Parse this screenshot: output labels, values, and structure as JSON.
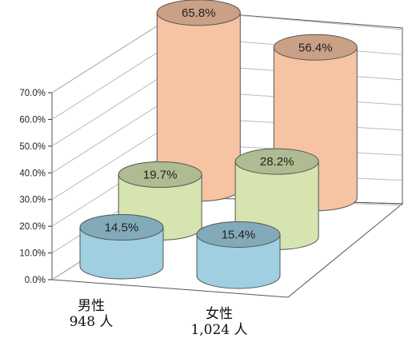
{
  "chart_data": {
    "type": "bar",
    "chart_style": "3d-cylinder-grouped",
    "categories": [
      "男性",
      "女性"
    ],
    "category_counts": [
      "948 人",
      "1,024 人"
    ],
    "series": [
      {
        "values": [
          14.5,
          15.4
        ],
        "color": "#9fcfe0"
      },
      {
        "values": [
          19.7,
          28.2
        ],
        "color": "#d6e4b0"
      },
      {
        "values": [
          65.8,
          56.4
        ],
        "color": "#f6c3a3"
      }
    ],
    "data_labels": [
      [
        "14.5%",
        "15.4%"
      ],
      [
        "19.7%",
        "28.2%"
      ],
      [
        "65.8%",
        "56.4%"
      ]
    ],
    "y_ticks": [
      "0.0%",
      "10.0%",
      "20.0%",
      "30.0%",
      "40.0%",
      "50.0%",
      "60.0%",
      "70.0%"
    ],
    "ylim": [
      0,
      70
    ],
    "grid": true,
    "title": "",
    "xlabel": "",
    "ylabel": ""
  }
}
